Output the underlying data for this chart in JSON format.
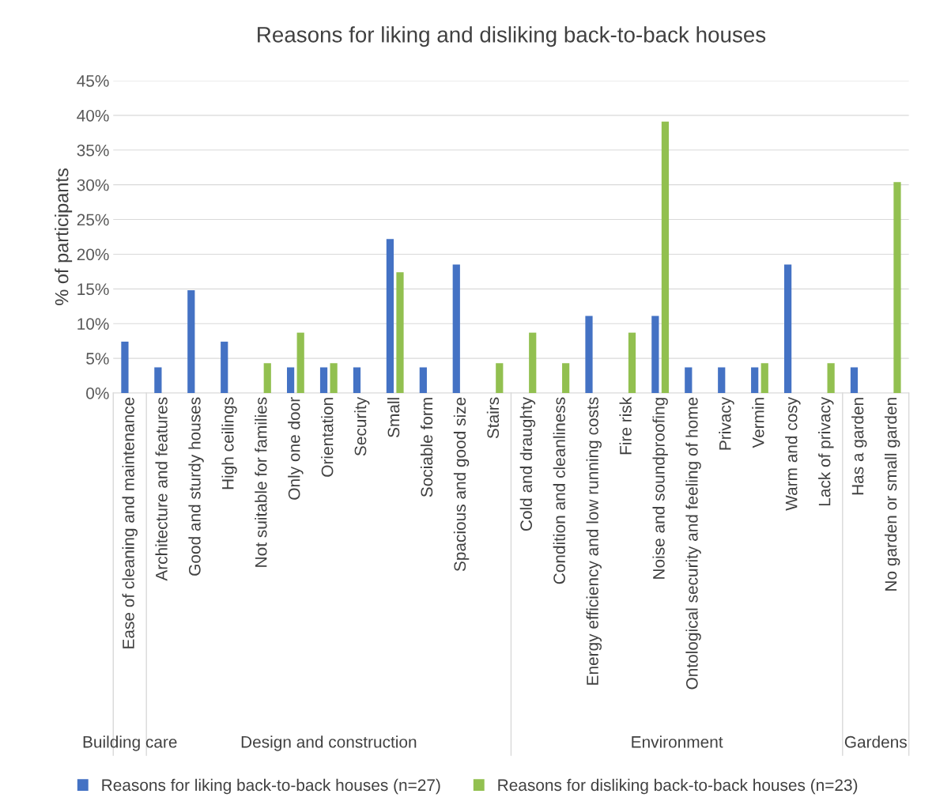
{
  "chart_data": {
    "type": "bar",
    "title": "Reasons for liking and disliking back-to-back houses",
    "ylabel": "% of participants",
    "categories": [
      "Ease of cleaning and maintenance",
      "Architecture and features",
      "Good and sturdy houses",
      "High ceilings",
      "Not suitable for families",
      "Only one door",
      "Orientation",
      "Security",
      "Small",
      "Sociable form",
      "Spacious and good size",
      "Stairs",
      "Cold and draughty",
      "Condition and cleanliness",
      "Energy efficiency and low running costs",
      "Fire risk",
      "Noise and soundproofing",
      "Ontological security and feeling of home",
      "Privacy",
      "Vermin",
      "Warm and cosy",
      "Lack of privacy",
      "Has a garden",
      "No garden or small garden"
    ],
    "series": [
      {
        "name": "Reasons for liking back-to-back houses (n=27)",
        "color": "#4472c4",
        "values": [
          7.4,
          3.7,
          14.8,
          7.4,
          null,
          3.7,
          3.7,
          3.7,
          22.2,
          3.7,
          18.5,
          null,
          null,
          null,
          11.1,
          null,
          11.1,
          3.7,
          3.7,
          3.7,
          18.5,
          null,
          3.7,
          null
        ]
      },
      {
        "name": "Reasons for disliking back-to-back houses (n=23)",
        "color": "#92c050",
        "values": [
          null,
          null,
          null,
          null,
          4.3,
          8.7,
          4.3,
          null,
          17.4,
          null,
          null,
          4.3,
          8.7,
          4.3,
          null,
          8.7,
          39.1,
          null,
          null,
          4.3,
          null,
          4.3,
          null,
          30.4
        ]
      }
    ],
    "ylim": [
      0,
      45
    ],
    "yticks": [
      {
        "value": 0,
        "label": "0%"
      },
      {
        "value": 5,
        "label": "5%"
      },
      {
        "value": 10,
        "label": "10%"
      },
      {
        "value": 15,
        "label": "15%"
      },
      {
        "value": 20,
        "label": "20%"
      },
      {
        "value": 25,
        "label": "25%"
      },
      {
        "value": 30,
        "label": "30%"
      },
      {
        "value": 35,
        "label": "35%"
      },
      {
        "value": 40,
        "label": "40%"
      },
      {
        "value": 45,
        "label": "45%"
      }
    ],
    "annotations": [
      "Building care",
      "Design and construction",
      "Environment",
      "Gardens"
    ],
    "grid": "y",
    "legend": "bottom"
  }
}
